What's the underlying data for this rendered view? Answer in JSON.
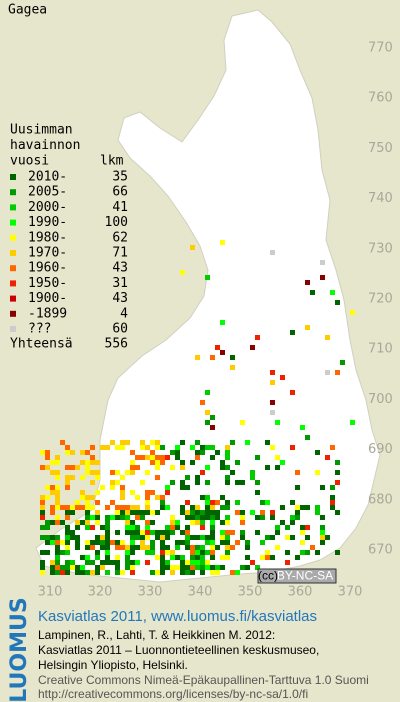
{
  "title": "Gagea",
  "legend": {
    "heading": [
      "Uusimman",
      "havainnon",
      "vuosi"
    ],
    "count_heading": "lkm",
    "items": [
      {
        "label": "2010-",
        "count": 35,
        "color": "#006400"
      },
      {
        "label": "2005-",
        "count": 66,
        "color": "#009900"
      },
      {
        "label": "2000-",
        "count": 41,
        "color": "#00cc00"
      },
      {
        "label": "1990-",
        "count": 100,
        "color": "#00ff00"
      },
      {
        "label": "1980-",
        "count": 62,
        "color": "#ffff00"
      },
      {
        "label": "1970-",
        "count": 71,
        "color": "#ffcc00"
      },
      {
        "label": "1960-",
        "count": 43,
        "color": "#ff6600"
      },
      {
        "label": "1950-",
        "count": 31,
        "color": "#ee2200"
      },
      {
        "label": "1900-",
        "count": 43,
        "color": "#cc0000"
      },
      {
        "label": "-1899",
        "count": 4,
        "color": "#880000"
      },
      {
        "label": "???",
        "count": 60,
        "color": "#cccccc"
      }
    ],
    "total_label": "Yhteensä",
    "total": 556
  },
  "axes": {
    "x_labels": [
      310,
      320,
      330,
      340,
      350,
      360,
      370
    ],
    "y_labels": [
      770,
      760,
      750,
      740,
      730,
      720,
      710,
      700,
      690,
      680,
      670
    ]
  },
  "license": "BY-NC-SA",
  "footer": {
    "logo": "LUOMUS",
    "heading": "Kasviatlas 2011, www.luomus.fi/kasviatlas",
    "citation": [
      "Lampinen, R., Lahti, T. & Heikkinen M. 2012:",
      "Kasviatlas 2011 – Luonnontieteellinen keskusmuseo,",
      "Helsingin Yliopisto, Helsinki."
    ],
    "license_text": [
      "Creative Commons Nimeä-Epäkaupallinen-Tarttuva 1.0 Suomi",
      "http://creativecommons.org/licenses/by-nc-sa/1.0/fi"
    ]
  }
}
